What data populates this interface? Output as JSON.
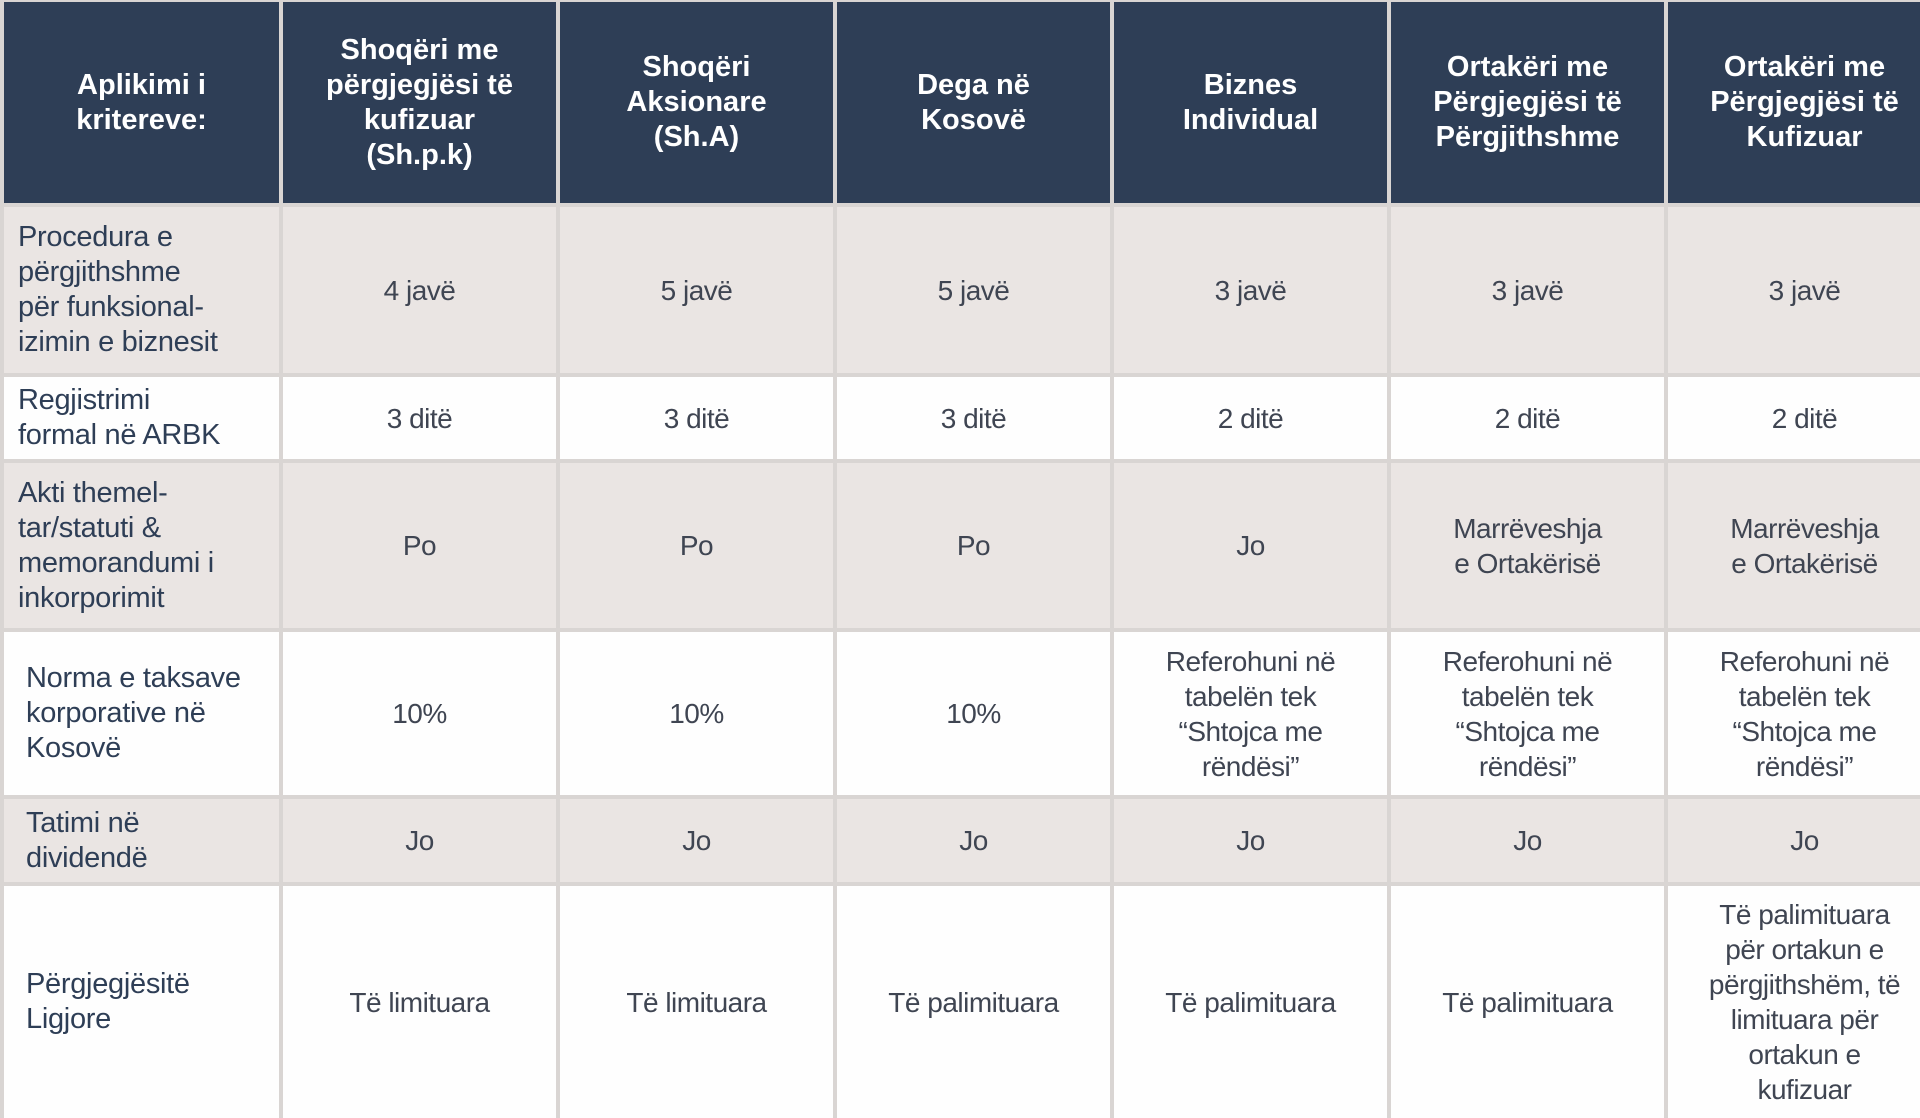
{
  "header": {
    "criteria": "Aplikimi i\nkritereve:",
    "columns": [
      "Shoqëri me\npërgjegjësi të\nkufizuar\n(Sh.p.k)",
      "Shoqëri\nAksionare\n(Sh.A)",
      "Dega në\nKosovë",
      "Biznes\nIndividual",
      "Ortakëri me\nPërgjegjësi të\nPërgjithshme",
      "Ortakëri me\nPërgjegjësi të\nKufizuar"
    ]
  },
  "rows": [
    {
      "label": "Procedura e\npërgjithshme\npër funksional-\nizimin e biznesit",
      "values": [
        "4 javë",
        "5 javë",
        "5 javë",
        "3 javë",
        "3 javë",
        "3 javë"
      ]
    },
    {
      "label": "Regjistrimi\nformal në ARBK",
      "values": [
        "3 ditë",
        "3 ditë",
        "3 ditë",
        "2 ditë",
        "2 ditë",
        "2 ditë"
      ]
    },
    {
      "label": "Akti themel-\ntar/statuti &\nmemorandumi i\ninkorporimit",
      "values": [
        "Po",
        "Po",
        "Po",
        "Jo",
        "Marrëveshja\ne Ortakërisë",
        "Marrëveshja\ne Ortakërisë"
      ]
    },
    {
      "label": "Norma e taksave\nkorporative në\nKosovë",
      "values": [
        "10%",
        "10%",
        "10%",
        "Referohuni në\ntabelën tek\n“Shtojca me\nrëndësi”",
        "Referohuni në\ntabelën tek\n“Shtojca me\nrëndësi”",
        "Referohuni në\ntabelën tek\n“Shtojca me\nrëndësi”"
      ]
    },
    {
      "label": "Tatimi në\ndividendë",
      "values": [
        "Jo",
        "Jo",
        "Jo",
        "Jo",
        "Jo",
        "Jo"
      ]
    },
    {
      "label": "Përgjegjësitë\nLigjore",
      "values": [
        "Të limituara",
        "Të limituara",
        "Të palimituara",
        "Të palimituara",
        "Të palimituara",
        "Të palimituara\npër ortakun e\npërgjithshëm, të\nlimituara për\nortakun e\nkufizuar"
      ]
    }
  ]
}
